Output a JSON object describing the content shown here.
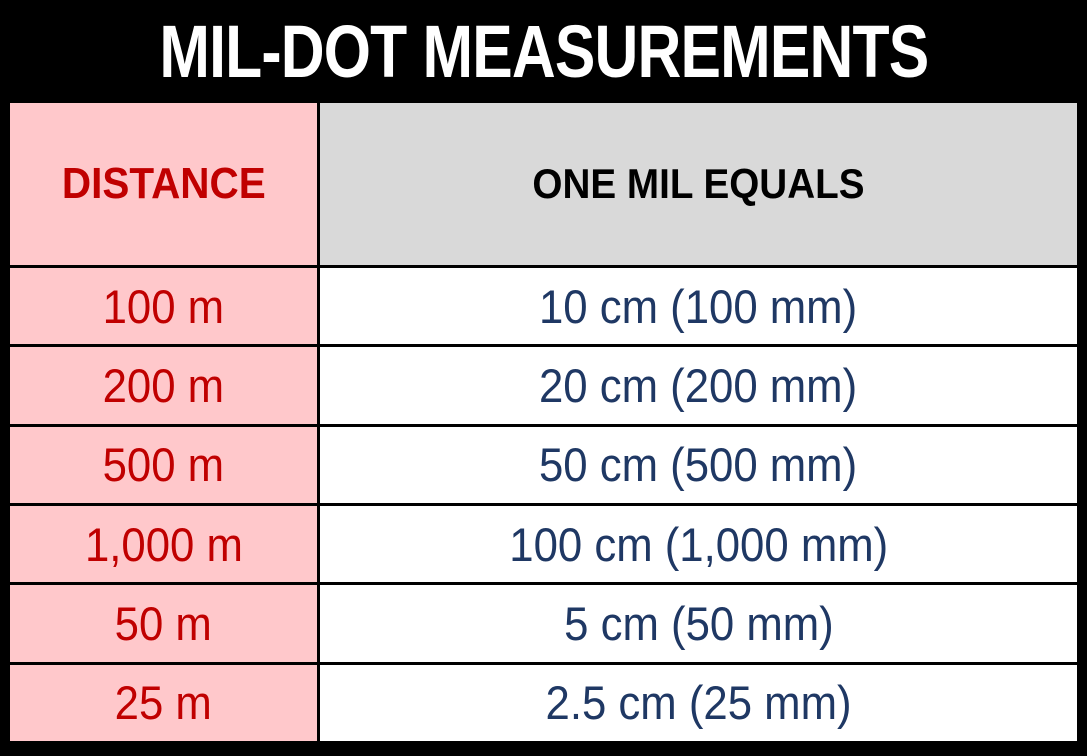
{
  "title": "MIL-DOT MEASUREMENTS",
  "colors": {
    "background": "#000000",
    "title_text": "#FFFFFF",
    "distance_header_bg": "#FFC8CB",
    "distance_text": "#C00000",
    "equals_header_bg": "#D9D9D9",
    "equals_header_text": "#000000",
    "equals_cell_bg": "#FFFFFF",
    "equals_text": "#1F3864",
    "gridlines": "#000000"
  },
  "chart_data": {
    "type": "table",
    "title": "MIL-DOT MEASUREMENTS",
    "columns": [
      "DISTANCE",
      "ONE MIL EQUALS"
    ],
    "rows": [
      [
        "100 m",
        "10 cm (100 mm)"
      ],
      [
        "200 m",
        "20 cm (200 mm)"
      ],
      [
        "500 m",
        "50 cm (500 mm)"
      ],
      [
        "1,000 m",
        "100 cm (1,000 mm)"
      ],
      [
        "50 m",
        "5 cm (50 mm)"
      ],
      [
        "25 m",
        "2.5 cm (25 mm)"
      ]
    ],
    "layout_hints": {
      "header_row": true,
      "grid": "thin black interior lines, thick black outer border",
      "distance_column_width_pct": 28.8
    }
  }
}
